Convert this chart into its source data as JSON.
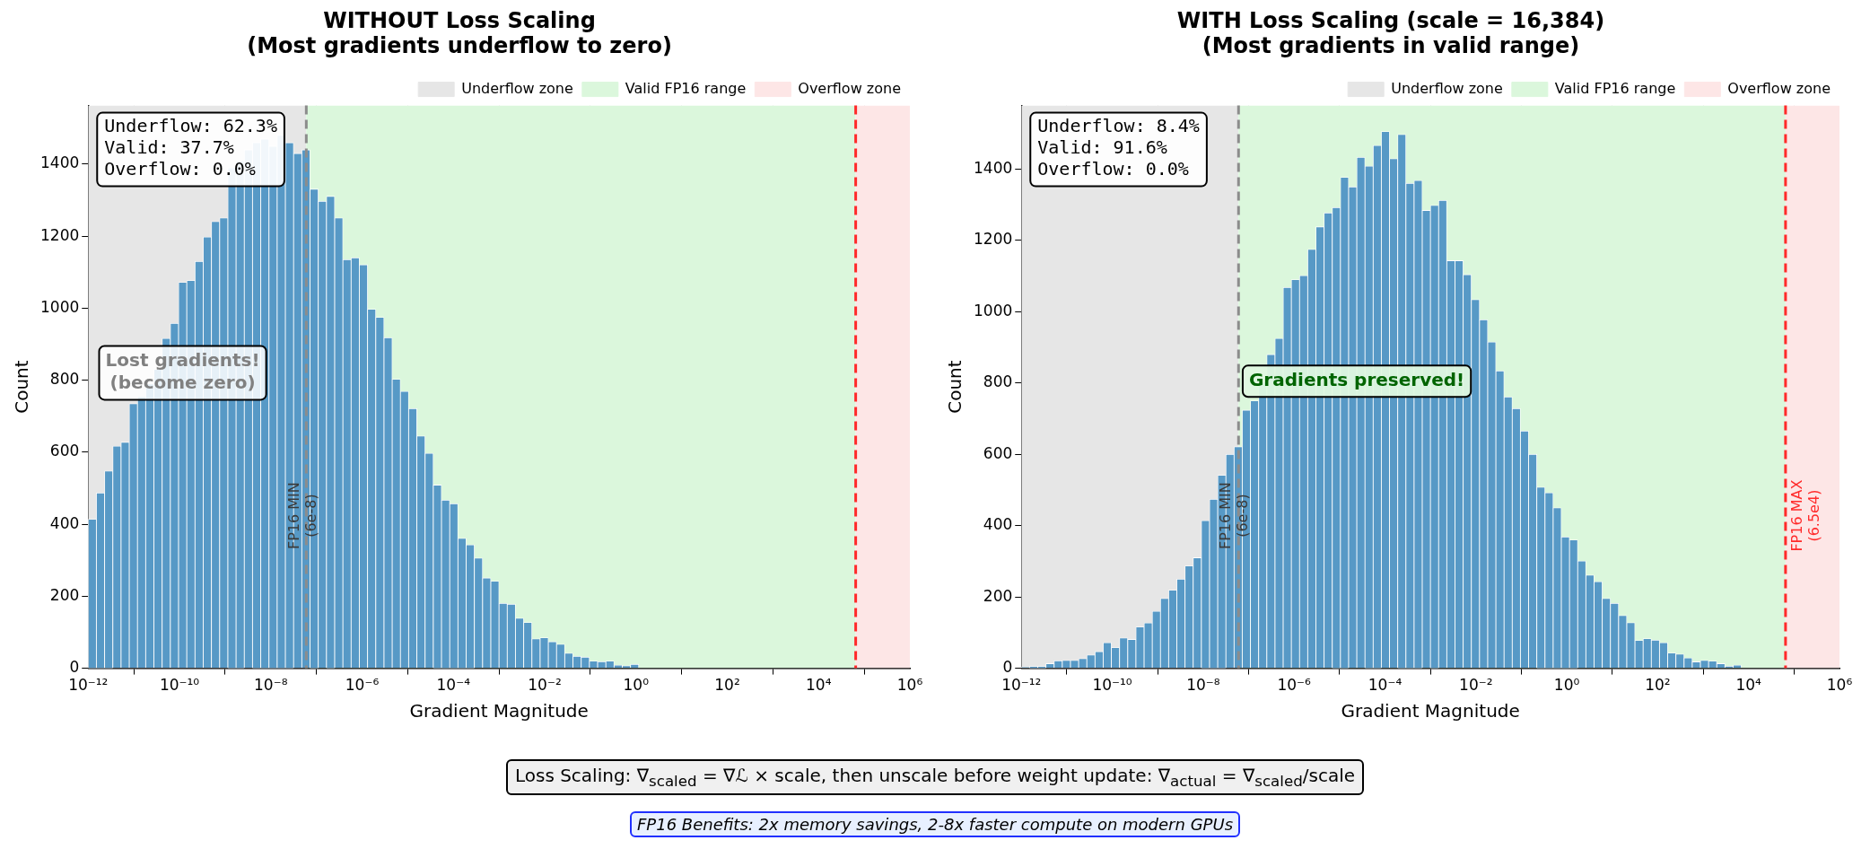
{
  "chart_data": [
    {
      "type": "histogram",
      "title": "WITHOUT Loss Scaling",
      "subtitle": "(Most gradients underflow to zero)",
      "xlabel": "Gradient Magnitude",
      "ylabel": "Count",
      "log": "x",
      "grid": true,
      "legend": "top right",
      "color": "#5799c6",
      "bins": [
        1e-12,
        1.514e-12,
        2.291e-12,
        3.467e-12,
        5.248e-12,
        7.943e-12,
        1.202e-11,
        1.82e-11,
        2.754e-11,
        4.169e-11,
        6.31e-11,
        9.55e-11,
        1.445e-10,
        2.188e-10,
        3.311e-10,
        5.012e-10,
        7.586e-10,
        1.148e-09,
        1.738e-09,
        2.63e-09,
        3.981e-09,
        6.026e-09,
        9.12e-09,
        1.38e-08,
        2.089e-08,
        3.162e-08,
        4.786e-08,
        7.244e-08,
        1.096e-07,
        1.66e-07,
        2.512e-07,
        3.802e-07,
        5.754e-07,
        8.71e-07,
        1.318e-06,
        1.995e-06,
        3.02e-06,
        4.571e-06,
        6.918e-06,
        1.047e-05,
        1.585e-05,
        2.399e-05,
        3.631e-05,
        5.495e-05,
        8.318e-05,
        0.0001259,
        0.0001905,
        0.0002884,
        0.0004365,
        0.0006607,
        0.001,
        0.001514,
        0.002291,
        0.003467,
        0.005248,
        0.007943,
        0.01202,
        0.0182,
        0.02754,
        0.04169,
        0.0631,
        0.0955,
        0.1445,
        0.2188,
        0.3311,
        0.5012,
        0.7586,
        1.148
      ],
      "values": [
        414,
        487,
        548,
        617,
        628,
        735,
        754,
        790,
        830,
        916,
        958,
        1072,
        1077,
        1130,
        1198,
        1241,
        1251,
        1390,
        1410,
        1440,
        1460,
        1470,
        1450,
        1480,
        1460,
        1430,
        1440,
        1331,
        1297,
        1311,
        1251,
        1135,
        1140,
        1121,
        997,
        975,
        918,
        803,
        769,
        721,
        645,
        597,
        509,
        467,
        457,
        361,
        343,
        306,
        251,
        242,
        180,
        178,
        139,
        127,
        82,
        85,
        74,
        67,
        42,
        33,
        31,
        20,
        18,
        20,
        9,
        7,
        11
      ],
      "xlim": [
        1e-12,
        1000000.0
      ],
      "xticks": [
        {
          "value": 1e-12,
          "label": "10⁻¹²"
        },
        {
          "value": 1e-10,
          "label": "10⁻¹⁰"
        },
        {
          "value": 1e-08,
          "label": "10⁻⁸"
        },
        {
          "value": 1e-06,
          "label": "10⁻⁶"
        },
        {
          "value": 0.0001,
          "label": "10⁻⁴"
        },
        {
          "value": 0.01,
          "label": "10⁻²"
        },
        {
          "value": 1,
          "label": "10⁰"
        },
        {
          "value": 100,
          "label": "10²"
        },
        {
          "value": 10000,
          "label": "10⁴"
        },
        {
          "value": 1000000.0,
          "label": "10⁶"
        }
      ],
      "ylim": [
        0,
        1563
      ],
      "yticks": [
        0,
        200,
        400,
        600,
        800,
        1000,
        1200,
        1400
      ],
      "bands": [
        {
          "axis": "x",
          "from": 1e-12,
          "to": 6e-08,
          "label": "Underflow zone",
          "color": "#e6e6e6"
        },
        {
          "axis": "x",
          "from": 6e-08,
          "to": 65000,
          "label": "Valid FP16 range",
          "color": "#dbf7dc"
        },
        {
          "axis": "x",
          "from": 65000,
          "to": 1000000.0,
          "label": "Overflow zone",
          "color": "#fde6e6"
        }
      ],
      "ref_lines": [
        {
          "axis": "x",
          "value": 6e-08,
          "label": "FP16 MIN\n(6e-8)",
          "color": "#8c8c8c",
          "line_style": "dashed"
        },
        {
          "axis": "x",
          "value": 65000,
          "color": "#ff2a2a",
          "line_style": "dashed"
        }
      ],
      "annotations": [
        "Underflow: 62.3%\nValid: 37.7%\nOverflow: 0.0%",
        "Lost gradients!\n(become zero)"
      ]
    },
    {
      "type": "histogram",
      "title": "WITH Loss Scaling (scale = 16,384)",
      "subtitle": "(Most gradients in valid range)",
      "xlabel": "Gradient Magnitude",
      "ylabel": "Count",
      "log": "x",
      "grid": true,
      "legend": "top right",
      "color": "#5799c6",
      "bins": [
        1e-12,
        1.514e-12,
        2.291e-12,
        3.467e-12,
        5.248e-12,
        7.943e-12,
        1.202e-11,
        1.82e-11,
        2.754e-11,
        4.169e-11,
        6.31e-11,
        9.55e-11,
        1.445e-10,
        2.188e-10,
        3.311e-10,
        5.012e-10,
        7.586e-10,
        1.148e-09,
        1.738e-09,
        2.63e-09,
        3.981e-09,
        6.026e-09,
        9.12e-09,
        1.38e-08,
        2.089e-08,
        3.162e-08,
        4.786e-08,
        7.244e-08,
        1.096e-07,
        1.66e-07,
        2.512e-07,
        3.802e-07,
        5.754e-07,
        8.71e-07,
        1.318e-06,
        1.995e-06,
        3.02e-06,
        4.571e-06,
        6.918e-06,
        1.047e-05,
        1.585e-05,
        2.399e-05,
        3.631e-05,
        5.495e-05,
        8.318e-05,
        0.0001259,
        0.0001905,
        0.0002884,
        0.0004365,
        0.0006607,
        0.001,
        0.001514,
        0.002291,
        0.003467,
        0.005248,
        0.007943,
        0.01202,
        0.0182,
        0.02754,
        0.04169,
        0.0631,
        0.0955,
        0.1445,
        0.2188,
        0.3311,
        0.5012,
        0.7586,
        1.148,
        1.738,
        2.63,
        3.981,
        6.026,
        9.12,
        13.8,
        20.89,
        31.62,
        47.86,
        72.44,
        109.6,
        166,
        251.2,
        380.2,
        575.4,
        871,
        1318,
        1995,
        3020,
        4571,
        6918
      ],
      "values": [
        3,
        5,
        5,
        13,
        21,
        22,
        22,
        27,
        37,
        47,
        72,
        58,
        85,
        81,
        116,
        127,
        160,
        196,
        219,
        250,
        287,
        310,
        414,
        474,
        541,
        600,
        621,
        724,
        750,
        803,
        880,
        925,
        1068,
        1090,
        1101,
        1175,
        1238,
        1277,
        1292,
        1377,
        1350,
        1433,
        1408,
        1466,
        1505,
        1429,
        1497,
        1360,
        1368,
        1284,
        1298,
        1312,
        1143,
        1143,
        1104,
        1034,
        977,
        915,
        834,
        761,
        728,
        665,
        600,
        508,
        492,
        450,
        368,
        360,
        301,
        261,
        243,
        196,
        182,
        148,
        128,
        78,
        83,
        79,
        72,
        43,
        40,
        29,
        18,
        22,
        20,
        13,
        6,
        9
      ],
      "xlim": [
        1e-12,
        1000000.0
      ],
      "xticks": [
        {
          "value": 1e-12,
          "label": "10⁻¹²"
        },
        {
          "value": 1e-10,
          "label": "10⁻¹⁰"
        },
        {
          "value": 1e-08,
          "label": "10⁻⁸"
        },
        {
          "value": 1e-06,
          "label": "10⁻⁶"
        },
        {
          "value": 0.0001,
          "label": "10⁻⁴"
        },
        {
          "value": 0.01,
          "label": "10⁻²"
        },
        {
          "value": 1,
          "label": "10⁰"
        },
        {
          "value": 100,
          "label": "10²"
        },
        {
          "value": 10000,
          "label": "10⁴"
        },
        {
          "value": 1000000.0,
          "label": "10⁶"
        }
      ],
      "ylim": [
        0,
        1578
      ],
      "yticks": [
        0,
        200,
        400,
        600,
        800,
        1000,
        1200,
        1400
      ],
      "bands": [
        {
          "axis": "x",
          "from": 1e-12,
          "to": 6e-08,
          "label": "Underflow zone",
          "color": "#e6e6e6"
        },
        {
          "axis": "x",
          "from": 6e-08,
          "to": 65000,
          "label": "Valid FP16 range",
          "color": "#dbf7dc"
        },
        {
          "axis": "x",
          "from": 65000,
          "to": 1000000.0,
          "label": "Overflow zone",
          "color": "#fde6e6"
        }
      ],
      "ref_lines": [
        {
          "axis": "x",
          "value": 6e-08,
          "label": "FP16 MIN\n(6e-8)",
          "color": "#8c8c8c",
          "line_style": "dashed"
        },
        {
          "axis": "x",
          "value": 65000,
          "label": "FP16 MAX\n(6.5e4)",
          "color": "#ff2a2a",
          "line_style": "dashed"
        }
      ],
      "annotations": [
        "Underflow: 8.4%\nValid: 91.6%\nOverflow: 0.0%",
        "Gradients preserved!",
        "Loss Scaling: ∇$_{scaled}$ = ∇ℒ × scale, then unscale before weight update: ∇$_{actual}$ = ∇$_{scaled}$/scale",
        "FP16 Benefits: 2x memory savings, 2-8x faster compute on modern GPUs"
      ]
    }
  ]
}
